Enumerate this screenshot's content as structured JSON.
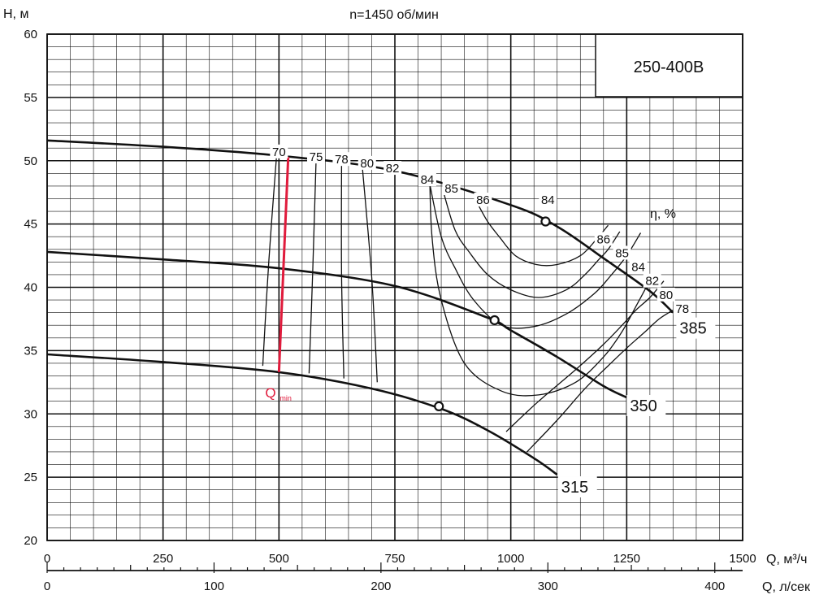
{
  "chart_data": {
    "type": "line",
    "title": "n=1450 об/мин",
    "model_label": "250-400В",
    "ylabel": "H, м",
    "xlabel": "Q, м³/ч",
    "x2label": "Q, л/сек",
    "xlim": [
      0,
      1500
    ],
    "ylim": [
      20,
      60
    ],
    "x2lim": [
      0,
      416.67
    ],
    "x_ticks": [
      "0",
      "250",
      "500",
      "750",
      "1000",
      "1250",
      "1500"
    ],
    "y_ticks": [
      "20",
      "25",
      "30",
      "35",
      "40",
      "45",
      "50",
      "55",
      "60"
    ],
    "x2_ticks": [
      "0",
      "100",
      "200",
      "300",
      "400"
    ],
    "grid": true,
    "efficiency_title": "η, %",
    "qmin_label": "Q",
    "qmin_sub": "min",
    "series": [
      {
        "name": "385",
        "x": [
          0,
          250,
          500,
          750,
          1000,
          1100,
          1200,
          1300,
          1350
        ],
        "y": [
          51.6,
          51.1,
          50.4,
          49.2,
          46.5,
          44.8,
          42.3,
          39.7,
          38.0
        ]
      },
      {
        "name": "350",
        "x": [
          0,
          250,
          500,
          750,
          950,
          1000,
          1100,
          1200,
          1250
        ],
        "y": [
          42.8,
          42.2,
          41.5,
          40.1,
          37.6,
          36.6,
          34.5,
          32.2,
          31.3
        ]
      },
      {
        "name": "315",
        "x": [
          0,
          250,
          500,
          700,
          850,
          950,
          1050,
          1100
        ],
        "y": [
          34.7,
          34.1,
          33.3,
          32.0,
          30.4,
          28.7,
          26.5,
          25.2
        ]
      }
    ],
    "bep_points": [
      {
        "curve": "385",
        "x": 1075,
        "y": 45.2
      },
      {
        "curve": "350",
        "x": 965,
        "y": 37.4
      },
      {
        "curve": "315",
        "x": 845,
        "y": 30.6
      }
    ],
    "qmin_line": {
      "x": [
        500,
        520
      ],
      "y": [
        33.3,
        50.3
      ]
    },
    "efficiency_contours": [
      {
        "label": "70",
        "x": [
          465,
          478,
          495
        ],
        "y": [
          33.8,
          42.0,
          50.5
        ]
      },
      {
        "label": "75",
        "x": [
          565,
          573,
          580
        ],
        "y": [
          33.2,
          41.5,
          50.0
        ]
      },
      {
        "label": "78",
        "x": [
          640,
          635,
          635
        ],
        "y": [
          32.8,
          41.0,
          49.8
        ]
      },
      {
        "label": "80",
        "x": [
          712,
          700,
          680
        ],
        "y": [
          32.5,
          40.8,
          49.4
        ]
      },
      {
        "label": "82",
        "x": [
          825,
          830,
          850,
          900,
          980,
          1060,
          1140,
          1200,
          1240,
          1270,
          1295
        ],
        "y": [
          49.0,
          44.0,
          39.0,
          34.0,
          31.8,
          31.5,
          32.5,
          34.5,
          36.5,
          38.5,
          40.2
        ]
      },
      {
        "label": "84",
        "x": [
          825,
          850,
          880,
          920,
          980,
          1050,
          1120,
          1180,
          1215,
          1250,
          1280
        ],
        "y": [
          48.2,
          44.0,
          41.5,
          39.0,
          37.0,
          36.9,
          37.9,
          39.5,
          40.9,
          42.5,
          44.3
        ]
      },
      {
        "label": "85",
        "x": [
          855,
          880,
          910,
          950,
          1000,
          1060,
          1120,
          1160,
          1190,
          1210,
          1235
        ],
        "y": [
          47.5,
          44.5,
          42.8,
          41.0,
          39.8,
          39.2,
          39.8,
          41.0,
          42.2,
          43.0,
          44.4
        ]
      },
      {
        "label": "86",
        "x": [
          930,
          950,
          975,
          1010,
          1055,
          1100,
          1150,
          1185,
          1210
        ],
        "y": [
          46.5,
          45.2,
          44.0,
          42.5,
          41.8,
          41.8,
          42.5,
          43.8,
          44.9
        ]
      },
      {
        "label": "80",
        "x": [
          990,
          1060,
          1140,
          1200,
          1240,
          1270,
          1300,
          1330
        ],
        "y": [
          28.6,
          31.0,
          33.5,
          35.5,
          37.0,
          38.2,
          39.2,
          40.5
        ]
      },
      {
        "label": "78",
        "x": [
          1035,
          1100,
          1160,
          1210,
          1250,
          1290,
          1320,
          1350
        ],
        "y": [
          27.0,
          29.5,
          32.0,
          33.8,
          35.2,
          36.5,
          37.5,
          38.2
        ]
      }
    ],
    "efficiency_labels": [
      {
        "text": "70",
        "x": 500,
        "y": 50.7
      },
      {
        "text": "75",
        "x": 580,
        "y": 50.3
      },
      {
        "text": "78",
        "x": 635,
        "y": 50.1
      },
      {
        "text": "80",
        "x": 690,
        "y": 49.8
      },
      {
        "text": "82",
        "x": 745,
        "y": 49.4
      },
      {
        "text": "84",
        "x": 820,
        "y": 48.5
      },
      {
        "text": "85",
        "x": 872,
        "y": 47.8
      },
      {
        "text": "86",
        "x": 940,
        "y": 46.9
      },
      {
        "text": "84",
        "x": 1080,
        "y": 46.9
      },
      {
        "text": "86",
        "x": 1200,
        "y": 43.8
      },
      {
        "text": "85",
        "x": 1240,
        "y": 42.7
      },
      {
        "text": "84",
        "x": 1275,
        "y": 41.6
      },
      {
        "text": "82",
        "x": 1305,
        "y": 40.5
      },
      {
        "text": "80",
        "x": 1335,
        "y": 39.4
      },
      {
        "text": "78",
        "x": 1370,
        "y": 38.3
      }
    ]
  }
}
